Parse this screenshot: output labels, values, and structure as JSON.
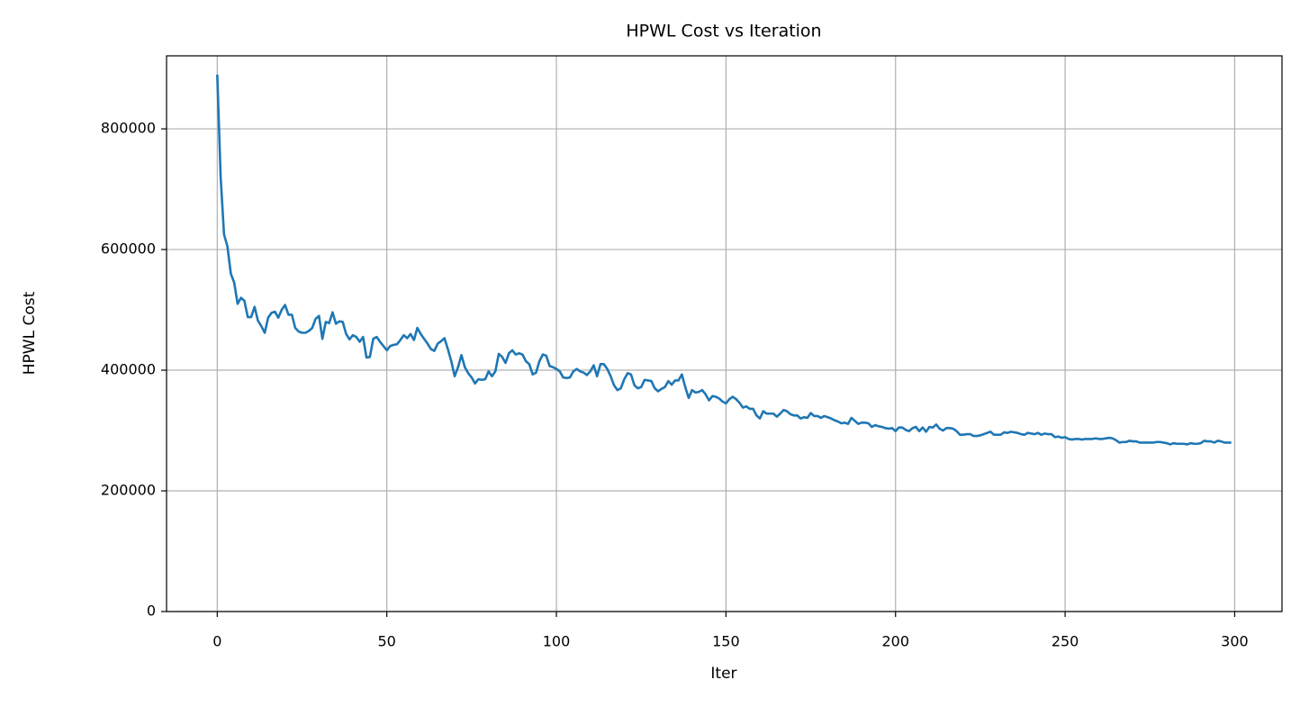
{
  "chart_data": {
    "type": "line",
    "title": "HPWL Cost vs Iteration",
    "x_label": "Iter",
    "y_label": "HPWL Cost",
    "color": "#1f77b4",
    "grid": true,
    "xlim": [
      -14.95,
      313.95
    ],
    "ylim": [
      0,
      921000
    ],
    "xticks": [
      0,
      50,
      100,
      150,
      200,
      250,
      300
    ],
    "yticks": [
      0,
      200000,
      400000,
      600000,
      800000
    ],
    "x": [
      0,
      1,
      2,
      3,
      4,
      5,
      6,
      7,
      8,
      9,
      10,
      11,
      12,
      13,
      14,
      15,
      16,
      17,
      18,
      19,
      20,
      21,
      22,
      23,
      24,
      25,
      26,
      27,
      28,
      29,
      30,
      31,
      32,
      33,
      34,
      35,
      36,
      37,
      38,
      39,
      40,
      41,
      42,
      43,
      44,
      45,
      46,
      47,
      48,
      49,
      50,
      51,
      52,
      53,
      54,
      55,
      56,
      57,
      58,
      59,
      60,
      61,
      62,
      63,
      64,
      65,
      66,
      67,
      68,
      69,
      70,
      71,
      72,
      73,
      74,
      75,
      76,
      77,
      78,
      79,
      80,
      81,
      82,
      83,
      84,
      85,
      86,
      87,
      88,
      89,
      90,
      91,
      92,
      93,
      94,
      95,
      96,
      97,
      98,
      99,
      100,
      101,
      102,
      103,
      104,
      105,
      106,
      107,
      108,
      109,
      110,
      111,
      112,
      113,
      114,
      115,
      116,
      117,
      118,
      119,
      120,
      121,
      122,
      123,
      124,
      125,
      126,
      127,
      128,
      129,
      130,
      131,
      132,
      133,
      134,
      135,
      136,
      137,
      138,
      139,
      140,
      141,
      142,
      143,
      144,
      145,
      146,
      147,
      148,
      149,
      150,
      151,
      152,
      153,
      154,
      155,
      156,
      157,
      158,
      159,
      160,
      161,
      162,
      163,
      164,
      165,
      166,
      167,
      168,
      169,
      170,
      171,
      172,
      173,
      174,
      175,
      176,
      177,
      178,
      179,
      180,
      181,
      182,
      183,
      184,
      185,
      186,
      187,
      188,
      189,
      190,
      191,
      192,
      193,
      194,
      195,
      196,
      197,
      198,
      199,
      200,
      201,
      202,
      203,
      204,
      205,
      206,
      207,
      208,
      209,
      210,
      211,
      212,
      213,
      214,
      215,
      216,
      217,
      218,
      219,
      220,
      221,
      222,
      223,
      224,
      225,
      226,
      227,
      228,
      229,
      230,
      231,
      232,
      233,
      234,
      235,
      236,
      237,
      238,
      239,
      240,
      241,
      242,
      243,
      244,
      245,
      246,
      247,
      248,
      249,
      250,
      251,
      252,
      253,
      254,
      255,
      256,
      257,
      258,
      259,
      260,
      261,
      262,
      263,
      264,
      265,
      266,
      267,
      268,
      269,
      270,
      271,
      272,
      273,
      274,
      275,
      276,
      277,
      278,
      279,
      280,
      281,
      282,
      283,
      284,
      285,
      286,
      287,
      288,
      289,
      290,
      291,
      292,
      293,
      294,
      295,
      296,
      297,
      298,
      299
    ],
    "values": [
      890000,
      720000,
      625000,
      605000,
      560000,
      545000,
      510000,
      520000,
      515000,
      488000,
      488000,
      505000,
      482000,
      473000,
      462000,
      487000,
      495000,
      497000,
      487000,
      500000,
      508000,
      492000,
      492000,
      470000,
      464000,
      462000,
      462000,
      465000,
      470000,
      485000,
      490000,
      452000,
      480000,
      478000,
      496000,
      477000,
      481000,
      480000,
      460000,
      451000,
      458000,
      455000,
      447000,
      455000,
      421000,
      422000,
      452000,
      455000,
      447000,
      440000,
      433000,
      440000,
      442000,
      443000,
      450000,
      458000,
      453000,
      460000,
      450000,
      470000,
      460000,
      452000,
      444000,
      435000,
      432000,
      444000,
      448000,
      453000,
      435000,
      415000,
      390000,
      405000,
      425000,
      405000,
      395000,
      388000,
      378000,
      385000,
      384000,
      385000,
      398000,
      390000,
      398000,
      427000,
      422000,
      412000,
      428000,
      433000,
      426000,
      428000,
      426000,
      415000,
      410000,
      393000,
      396000,
      415000,
      426000,
      424000,
      407000,
      405000,
      402000,
      398000,
      388000,
      387000,
      388000,
      398000,
      402000,
      398000,
      396000,
      392000,
      398000,
      408000,
      390000,
      410000,
      410000,
      402000,
      390000,
      375000,
      367000,
      370000,
      385000,
      395000,
      393000,
      375000,
      370000,
      372000,
      384000,
      383000,
      382000,
      370000,
      365000,
      369000,
      372000,
      382000,
      376000,
      383000,
      383000,
      393000,
      372000,
      354000,
      367000,
      363000,
      364000,
      367000,
      360000,
      350000,
      357000,
      356000,
      353000,
      348000,
      345000,
      352000,
      356000,
      352000,
      346000,
      338000,
      340000,
      336000,
      336000,
      325000,
      320000,
      332000,
      328000,
      328000,
      328000,
      323000,
      328000,
      334000,
      332000,
      327000,
      325000,
      325000,
      320000,
      322000,
      321000,
      329000,
      324000,
      324000,
      321000,
      324000,
      322000,
      320000,
      317000,
      315000,
      312000,
      313000,
      311000,
      321000,
      316000,
      311000,
      313000,
      313000,
      312000,
      306000,
      309000,
      307000,
      306000,
      304000,
      303000,
      304000,
      299000,
      305000,
      305000,
      301000,
      299000,
      304000,
      306000,
      299000,
      305000,
      298000,
      306000,
      305000,
      310000,
      303000,
      300000,
      304000,
      304000,
      303000,
      299000,
      293000,
      293000,
      294000,
      294000,
      291000,
      291000,
      292000,
      294000,
      296000,
      298000,
      293000,
      293000,
      293000,
      297000,
      296000,
      298000,
      297000,
      296000,
      294000,
      293000,
      296000,
      295000,
      294000,
      296000,
      293000,
      295000,
      294000,
      294000,
      289000,
      290000,
      288000,
      289000,
      286000,
      285000,
      286000,
      286000,
      285000,
      286000,
      286000,
      286000,
      287000,
      286000,
      286000,
      287000,
      288000,
      287000,
      284000,
      280000,
      281000,
      281000,
      283000,
      282000,
      282000,
      280000,
      280000,
      280000,
      280000,
      280000,
      281000,
      281000,
      280000,
      279000,
      277000,
      279000,
      278000,
      278000,
      278000,
      277000,
      279000,
      278000,
      278000,
      279000,
      283000,
      282000,
      282000,
      280000,
      283000,
      282000,
      280000,
      280000,
      280000
    ]
  }
}
